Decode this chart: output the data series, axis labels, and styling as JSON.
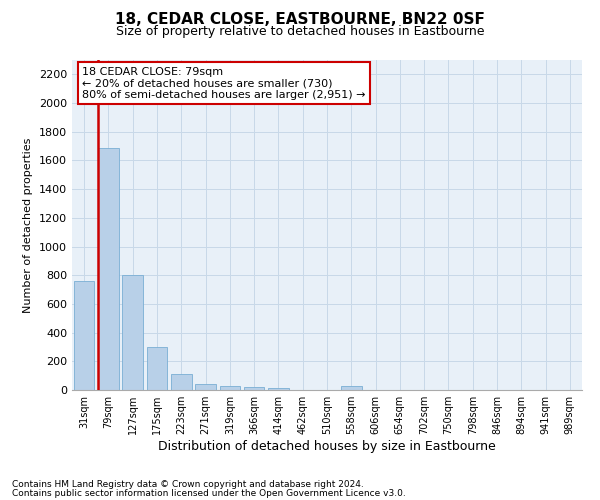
{
  "title": "18, CEDAR CLOSE, EASTBOURNE, BN22 0SF",
  "subtitle": "Size of property relative to detached houses in Eastbourne",
  "xlabel": "Distribution of detached houses by size in Eastbourne",
  "ylabel": "Number of detached properties",
  "footer_line1": "Contains HM Land Registry data © Crown copyright and database right 2024.",
  "footer_line2": "Contains public sector information licensed under the Open Government Licence v3.0.",
  "categories": [
    "31sqm",
    "79sqm",
    "127sqm",
    "175sqm",
    "223sqm",
    "271sqm",
    "319sqm",
    "366sqm",
    "414sqm",
    "462sqm",
    "510sqm",
    "558sqm",
    "606sqm",
    "654sqm",
    "702sqm",
    "750sqm",
    "798sqm",
    "846sqm",
    "894sqm",
    "941sqm",
    "989sqm"
  ],
  "values": [
    760,
    1690,
    800,
    300,
    115,
    40,
    25,
    20,
    15,
    0,
    0,
    30,
    0,
    0,
    0,
    0,
    0,
    0,
    0,
    0,
    0
  ],
  "bar_color": "#b8d0e8",
  "bar_edge_color": "#7aafd4",
  "highlight_bar_index": 1,
  "highlight_color": "#cc0000",
  "ylim": [
    0,
    2300
  ],
  "yticks": [
    0,
    200,
    400,
    600,
    800,
    1000,
    1200,
    1400,
    1600,
    1800,
    2000,
    2200
  ],
  "annotation_title": "18 CEDAR CLOSE: 79sqm",
  "annotation_line1": "← 20% of detached houses are smaller (730)",
  "annotation_line2": "80% of semi-detached houses are larger (2,951) →",
  "annotation_box_facecolor": "#ffffff",
  "annotation_box_edgecolor": "#cc0000",
  "grid_color": "#c8d8e8",
  "background_color": "#e8f0f8",
  "title_fontsize": 11,
  "subtitle_fontsize": 9,
  "ylabel_fontsize": 8,
  "xlabel_fontsize": 9,
  "tick_fontsize": 8,
  "xtick_fontsize": 7,
  "footer_fontsize": 6.5,
  "annotation_fontsize": 8
}
